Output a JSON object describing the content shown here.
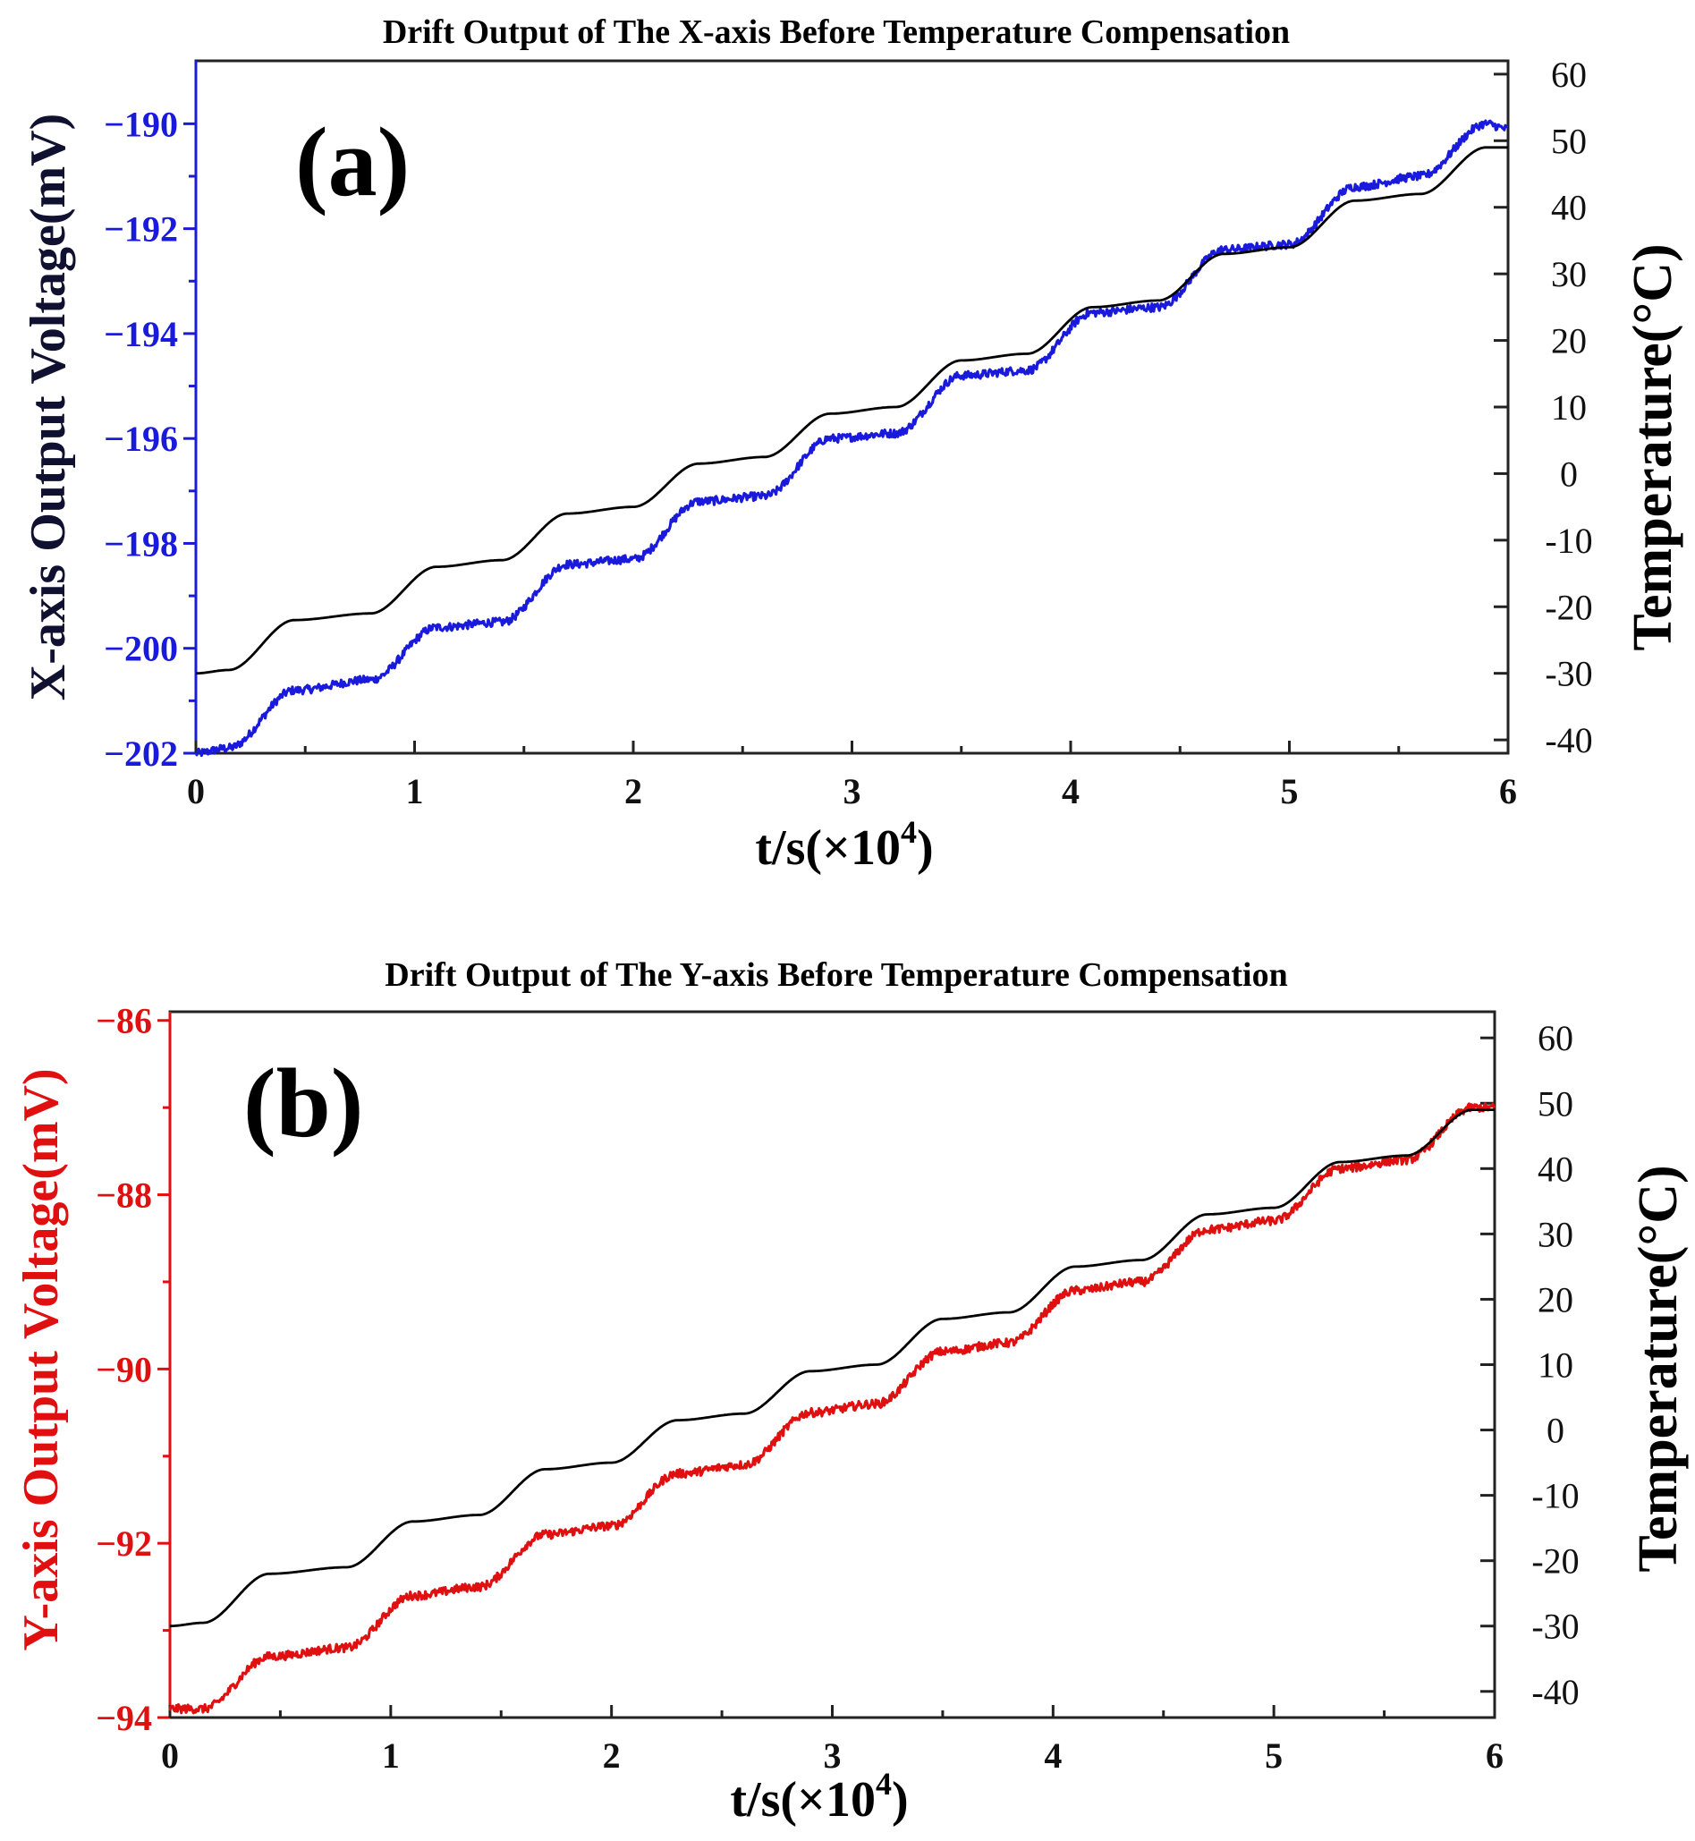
{
  "chart_data": [
    {
      "type": "line",
      "panel_label": "(a)",
      "title": "Drift Output of The X-axis Before Temperature Compensation",
      "xlabel": "t/s(×10",
      "xlabel_sup": "4",
      "xlabel_end": ")",
      "ylabel": "X-axis Output Voltage(mV)",
      "y2label": "Temperature(°C)",
      "xlim": [
        0,
        6
      ],
      "ylim": [
        -202,
        -188.8
      ],
      "y2lim": [
        -42,
        62
      ],
      "xticks": [
        0,
        1,
        2,
        3,
        4,
        5,
        6
      ],
      "xtick_labels": [
        "0",
        "1",
        "2",
        "3",
        "4",
        "5",
        "6"
      ],
      "yticks": [
        -202,
        -200,
        -198,
        -196,
        -194,
        -192,
        -190
      ],
      "ytick_labels": [
        "−202",
        "−200",
        "−198",
        "−196",
        "−194",
        "−192",
        "−190"
      ],
      "y2ticks": [
        -40,
        -30,
        -20,
        -10,
        0,
        10,
        20,
        30,
        40,
        50,
        60
      ],
      "y2tick_labels": [
        "-40",
        "-30",
        "-20",
        "-10",
        "0",
        "10",
        "20",
        "30",
        "40",
        "50",
        "60"
      ],
      "series_color": "#1a1adc",
      "ylabel_color": "#101030",
      "ytick_color": "#1a1adc",
      "series": [
        {
          "name": "X-axis Output Voltage",
          "axis": "left",
          "color": "#1a1adc",
          "noisy": true,
          "x": [
            0,
            0.15,
            0.45,
            0.8,
            1.1,
            1.4,
            1.7,
            2.0,
            2.3,
            2.6,
            2.9,
            3.2,
            3.5,
            3.8,
            4.1,
            4.4,
            4.7,
            5.0,
            5.3,
            5.6,
            5.9,
            6.0
          ],
          "y": [
            -202,
            -201.9,
            -200.8,
            -200.6,
            -199.6,
            -199.5,
            -198.4,
            -198.3,
            -197.2,
            -197.1,
            -196.0,
            -195.9,
            -194.8,
            -194.7,
            -193.6,
            -193.5,
            -192.4,
            -192.3,
            -191.2,
            -191.0,
            -190.0,
            -190.1
          ]
        },
        {
          "name": "Temperature",
          "axis": "right",
          "color": "#000000",
          "noisy": false,
          "x": [
            0,
            0.15,
            0.45,
            0.8,
            1.1,
            1.4,
            1.7,
            2.0,
            2.3,
            2.6,
            2.9,
            3.2,
            3.5,
            3.8,
            4.1,
            4.4,
            4.7,
            5.0,
            5.3,
            5.6,
            5.9,
            6.0
          ],
          "y": [
            -30,
            -29.5,
            -22,
            -21,
            -14,
            -13,
            -6,
            -5,
            1.5,
            2.5,
            9,
            10,
            17,
            18,
            25,
            26,
            33,
            34,
            41,
            42,
            49,
            49
          ]
        }
      ]
    },
    {
      "type": "line",
      "panel_label": "(b)",
      "title": "Drift Output of The Y-axis Before Temperature Compensation",
      "xlabel": "t/s(×10",
      "xlabel_sup": "4",
      "xlabel_end": ")",
      "ylabel": "Y-axis Output Voltage(mV)",
      "y2label": "Temperature(°C)",
      "xlim": [
        0,
        6
      ],
      "ylim": [
        -94,
        -85.9
      ],
      "y2lim": [
        -44,
        64
      ],
      "xticks": [
        0,
        1,
        2,
        3,
        4,
        5,
        6
      ],
      "xtick_labels": [
        "0",
        "1",
        "2",
        "3",
        "4",
        "5",
        "6"
      ],
      "yticks": [
        -94,
        -92,
        -90,
        -88,
        -86
      ],
      "ytick_labels": [
        "−94",
        "−92",
        "−90",
        "−88",
        "−86"
      ],
      "y2ticks": [
        -40,
        -30,
        -20,
        -10,
        0,
        10,
        20,
        30,
        40,
        50,
        60
      ],
      "y2tick_labels": [
        "-40",
        "-30",
        "-20",
        "-10",
        "0",
        "10",
        "20",
        "30",
        "40",
        "50",
        "60"
      ],
      "series_color": "#e01010",
      "ylabel_color": "#e01010",
      "ytick_color": "#e01010",
      "series": [
        {
          "name": "Y-axis Output Voltage",
          "axis": "left",
          "color": "#e01010",
          "noisy": true,
          "x": [
            0,
            0.15,
            0.45,
            0.8,
            1.1,
            1.4,
            1.7,
            2.0,
            2.3,
            2.6,
            2.9,
            3.2,
            3.5,
            3.8,
            4.1,
            4.4,
            4.7,
            5.0,
            5.3,
            5.6,
            5.9,
            6.0
          ],
          "y": [
            -93.9,
            -93.9,
            -93.3,
            -93.2,
            -92.6,
            -92.5,
            -91.9,
            -91.8,
            -91.2,
            -91.1,
            -90.5,
            -90.4,
            -89.8,
            -89.7,
            -89.1,
            -89.0,
            -88.4,
            -88.3,
            -87.7,
            -87.6,
            -87.0,
            -87.0
          ]
        },
        {
          "name": "Temperature",
          "axis": "right",
          "color": "#000000",
          "noisy": false,
          "x": [
            0,
            0.15,
            0.45,
            0.8,
            1.1,
            1.4,
            1.7,
            2.0,
            2.3,
            2.6,
            2.9,
            3.2,
            3.5,
            3.8,
            4.1,
            4.4,
            4.7,
            5.0,
            5.3,
            5.6,
            5.9,
            6.0
          ],
          "y": [
            -30,
            -29.5,
            -22,
            -21,
            -14,
            -13,
            -6,
            -5,
            1.5,
            2.5,
            9,
            10,
            17,
            18,
            25,
            26,
            33,
            34,
            41,
            42,
            49,
            49
          ]
        }
      ]
    }
  ]
}
